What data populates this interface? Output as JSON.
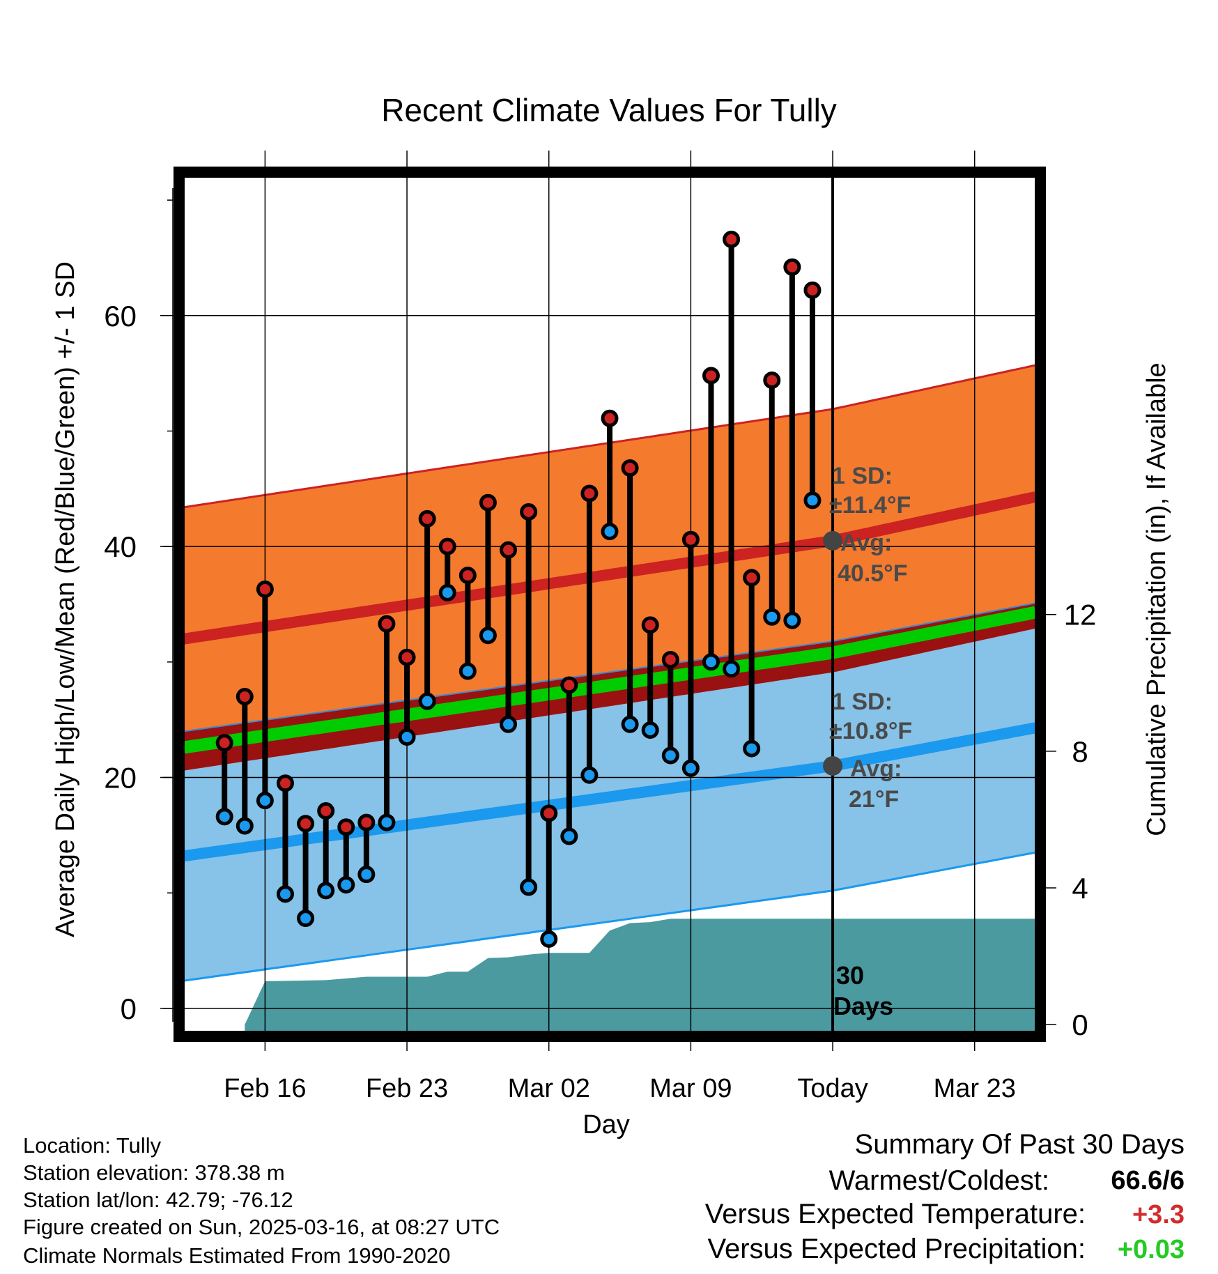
{
  "chart_data": {
    "type": "line",
    "title": "Recent Climate Values For Tully",
    "xlabel": "Day",
    "ylabel": "Average Daily High/Low/Mean (Red/Blue/Green) +/- 1 SD",
    "y2label": "Cumulative Precipitation (in), If Available",
    "x_range": [
      "2025-02-12",
      "2025-03-26"
    ],
    "ylim": [
      -2,
      72
    ],
    "y_ticks": [
      0,
      20,
      40,
      60
    ],
    "y_minor_ticks": [
      10,
      30,
      50,
      70
    ],
    "y2lim": [
      -0.2,
      24.8
    ],
    "y2_ticks": [
      0,
      4,
      8,
      12
    ],
    "x_ticks": [
      {
        "date": "2025-02-16",
        "label": "Feb 16"
      },
      {
        "date": "2025-02-23",
        "label": "Feb 23"
      },
      {
        "date": "2025-03-02",
        "label": "Mar 02"
      },
      {
        "date": "2025-03-09",
        "label": "Mar 09"
      },
      {
        "date": "2025-03-16",
        "label": "Today"
      },
      {
        "date": "2025-03-23",
        "label": "Mar 23"
      }
    ],
    "grid": true,
    "today": "2025-03-16",
    "period_label": [
      "30",
      "Days"
    ],
    "daily": [
      {
        "date": "2025-02-14",
        "high": 23.0,
        "low": 16.6
      },
      {
        "date": "2025-02-15",
        "high": 27.0,
        "low": 15.8
      },
      {
        "date": "2025-02-16",
        "high": 36.3,
        "low": 18.0
      },
      {
        "date": "2025-02-17",
        "high": 19.5,
        "low": 9.9
      },
      {
        "date": "2025-02-18",
        "high": 16.0,
        "low": 7.8
      },
      {
        "date": "2025-02-19",
        "high": 17.1,
        "low": 10.2
      },
      {
        "date": "2025-02-20",
        "high": 15.7,
        "low": 10.7
      },
      {
        "date": "2025-02-21",
        "high": 16.1,
        "low": 11.6
      },
      {
        "date": "2025-02-22",
        "high": 33.3,
        "low": 16.1
      },
      {
        "date": "2025-02-23",
        "high": 30.4,
        "low": 23.5
      },
      {
        "date": "2025-02-24",
        "high": 42.4,
        "low": 26.6
      },
      {
        "date": "2025-02-25",
        "high": 40.0,
        "low": 36.0
      },
      {
        "date": "2025-02-26",
        "high": 37.5,
        "low": 29.2
      },
      {
        "date": "2025-02-27",
        "high": 43.8,
        "low": 32.3
      },
      {
        "date": "2025-02-28",
        "high": 39.7,
        "low": 24.6
      },
      {
        "date": "2025-03-01",
        "high": 43.0,
        "low": 10.5
      },
      {
        "date": "2025-03-02",
        "high": 16.9,
        "low": 6.0
      },
      {
        "date": "2025-03-03",
        "high": 28.0,
        "low": 14.9
      },
      {
        "date": "2025-03-04",
        "high": 44.6,
        "low": 20.2
      },
      {
        "date": "2025-03-05",
        "high": 51.1,
        "low": 41.3
      },
      {
        "date": "2025-03-06",
        "high": 46.8,
        "low": 24.6
      },
      {
        "date": "2025-03-07",
        "high": 33.2,
        "low": 24.1
      },
      {
        "date": "2025-03-08",
        "high": 30.2,
        "low": 21.9
      },
      {
        "date": "2025-03-09",
        "high": 40.6,
        "low": 20.8
      },
      {
        "date": "2025-03-10",
        "high": 54.8,
        "low": 30.0
      },
      {
        "date": "2025-03-11",
        "high": 66.6,
        "low": 29.4
      },
      {
        "date": "2025-03-12",
        "high": 37.3,
        "low": 22.5
      },
      {
        "date": "2025-03-13",
        "high": 54.4,
        "low": 33.9
      },
      {
        "date": "2025-03-14",
        "high": 64.2,
        "low": 33.6
      },
      {
        "date": "2025-03-15",
        "high": 62.2,
        "low": 44.0
      }
    ],
    "normals": {
      "high_mean": {
        "2025-02-12": 32.0,
        "2025-03-16": 40.5,
        "2025-03-26": 44.3
      },
      "high_sd": 11.4,
      "low_mean": {
        "2025-02-12": 13.2,
        "2025-03-16": 21.0,
        "2025-03-26": 24.3
      },
      "low_sd": 10.8,
      "mean": {
        "2025-02-12": 22.6,
        "2025-03-16": 30.8,
        "2025-03-26": 34.3
      }
    },
    "annotations": {
      "high": {
        "sd_label": "1 SD:",
        "sd_value": "±11.4°F",
        "avg_label": "Avg:",
        "avg_value": "40.5°F"
      },
      "low": {
        "sd_label": "1 SD:",
        "sd_value": "±10.8°F",
        "avg_label": "Avg:",
        "avg_value": "21°F"
      }
    },
    "precip_cumulative": [
      {
        "date": "2025-02-15",
        "value": 0.0
      },
      {
        "date": "2025-02-16",
        "value": 1.27
      },
      {
        "date": "2025-02-19",
        "value": 1.3
      },
      {
        "date": "2025-02-21",
        "value": 1.4
      },
      {
        "date": "2025-02-24",
        "value": 1.4
      },
      {
        "date": "2025-02-25",
        "value": 1.55
      },
      {
        "date": "2025-02-26",
        "value": 1.55
      },
      {
        "date": "2025-02-27",
        "value": 1.95
      },
      {
        "date": "2025-02-28",
        "value": 1.97
      },
      {
        "date": "2025-03-01",
        "value": 2.05
      },
      {
        "date": "2025-03-02",
        "value": 2.1
      },
      {
        "date": "2025-03-04",
        "value": 2.1
      },
      {
        "date": "2025-03-05",
        "value": 2.75
      },
      {
        "date": "2025-03-06",
        "value": 2.97
      },
      {
        "date": "2025-03-07",
        "value": 3.0
      },
      {
        "date": "2025-03-08",
        "value": 3.1
      },
      {
        "date": "2025-03-26",
        "value": 3.1
      }
    ],
    "colors": {
      "high": "#cc2222",
      "low": "#1a99ee",
      "mean": "#00cc00",
      "high_band": "#f47a2e",
      "low_band": "#87c2e8",
      "overlap": "#991111",
      "precip": "#4a9aa0",
      "today_marker": "#444444"
    }
  },
  "footer": {
    "location": "Location: Tully",
    "elevation": "Station elevation: 378.38 m",
    "latlon": "Station lat/lon: 42.79; -76.12",
    "created": "Figure created on Sun, 2025-03-16, at 08:27 UTC",
    "normals": "Climate Normals Estimated From 1990-2020"
  },
  "summary": {
    "title": "Summary Of Past 30 Days",
    "warmest_label": "Warmest/Coldest:",
    "warmest_value": "66.6/6",
    "temp_label": "Versus Expected Temperature:",
    "temp_value": "+3.3",
    "precip_label": "Versus Expected Precipitation:",
    "precip_value": "+0.03",
    "colors": {
      "temp": "#d22d2d",
      "precip": "#22cc22"
    }
  }
}
